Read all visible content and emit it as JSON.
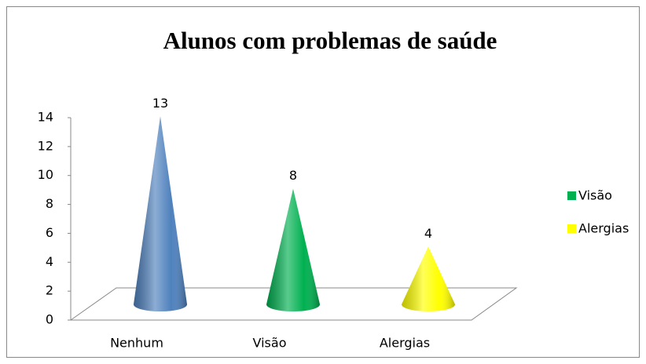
{
  "chart_data": {
    "type": "cone",
    "title": "Alunos com problemas de saúde",
    "categories": [
      "Nenhum",
      "Visão",
      "Alergias"
    ],
    "values": [
      13,
      8,
      4
    ],
    "colors": [
      "#4f81bd",
      "#00b050",
      "#ffff00"
    ],
    "ylim": [
      0,
      14
    ],
    "yticks": [
      0,
      2,
      4,
      6,
      8,
      10,
      12,
      14
    ]
  }
}
